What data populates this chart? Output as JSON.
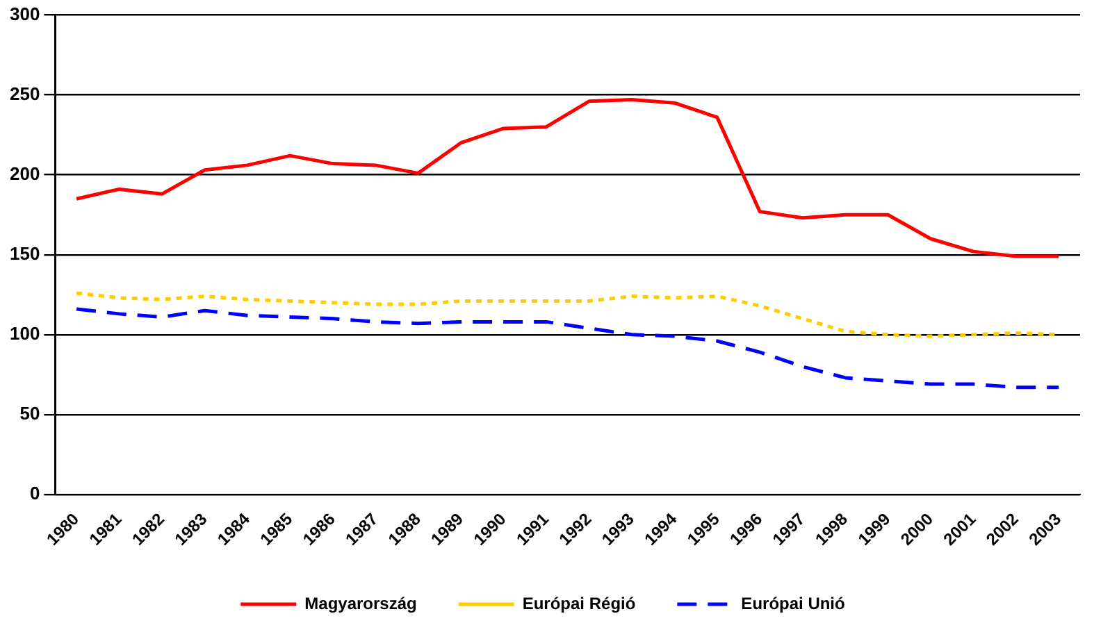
{
  "chart_data": {
    "type": "line",
    "categories": [
      "1980",
      "1981",
      "1982",
      "1983",
      "1984",
      "1985",
      "1986",
      "1987",
      "1988",
      "1989",
      "1990",
      "1991",
      "1992",
      "1993",
      "1994",
      "1995",
      "1996",
      "1997",
      "1998",
      "1999",
      "2000",
      "2001",
      "2002",
      "2003"
    ],
    "series": [
      {
        "name": "Magyarország",
        "color": "#ff0000",
        "line_style": "solid",
        "values": [
          185,
          191,
          188,
          203,
          206,
          212,
          207,
          206,
          201,
          220,
          229,
          230,
          246,
          247,
          245,
          236,
          177,
          173,
          175,
          175,
          160,
          152,
          149,
          149
        ]
      },
      {
        "name": "Európai Régió",
        "color": "#ffcc00",
        "line_style": "dotted",
        "values": [
          126,
          123,
          122,
          124,
          122,
          121,
          120,
          119,
          119,
          121,
          121,
          121,
          121,
          124,
          123,
          124,
          118,
          110,
          102,
          100,
          99,
          100,
          101,
          100
        ]
      },
      {
        "name": "Európai Unió",
        "color": "#0000ff",
        "line_style": "dashed",
        "values": [
          116,
          113,
          111,
          115,
          112,
          111,
          110,
          108,
          107,
          108,
          108,
          108,
          104,
          100,
          99,
          96,
          89,
          80,
          73,
          71,
          69,
          69,
          67,
          67
        ]
      }
    ],
    "ylim": [
      0,
      300
    ],
    "yticks": [
      0,
      50,
      100,
      150,
      200,
      250,
      300
    ],
    "grid": "y",
    "legend": "bottom",
    "marker": "none"
  }
}
